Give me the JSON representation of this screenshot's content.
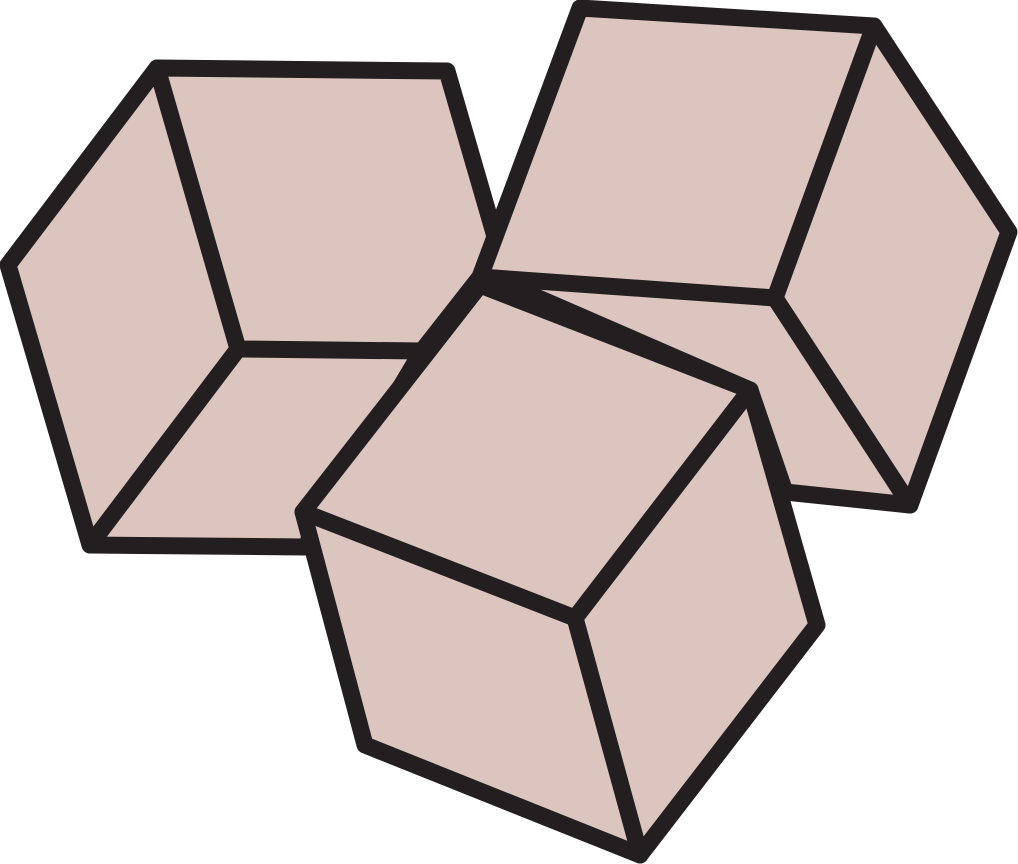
{
  "colors": {
    "fill": "#dcc5bf",
    "outline": "#231f20",
    "background": "#ffffff"
  },
  "cubes": [
    {
      "name": "cube-left"
    },
    {
      "name": "cube-right"
    },
    {
      "name": "cube-front"
    }
  ]
}
